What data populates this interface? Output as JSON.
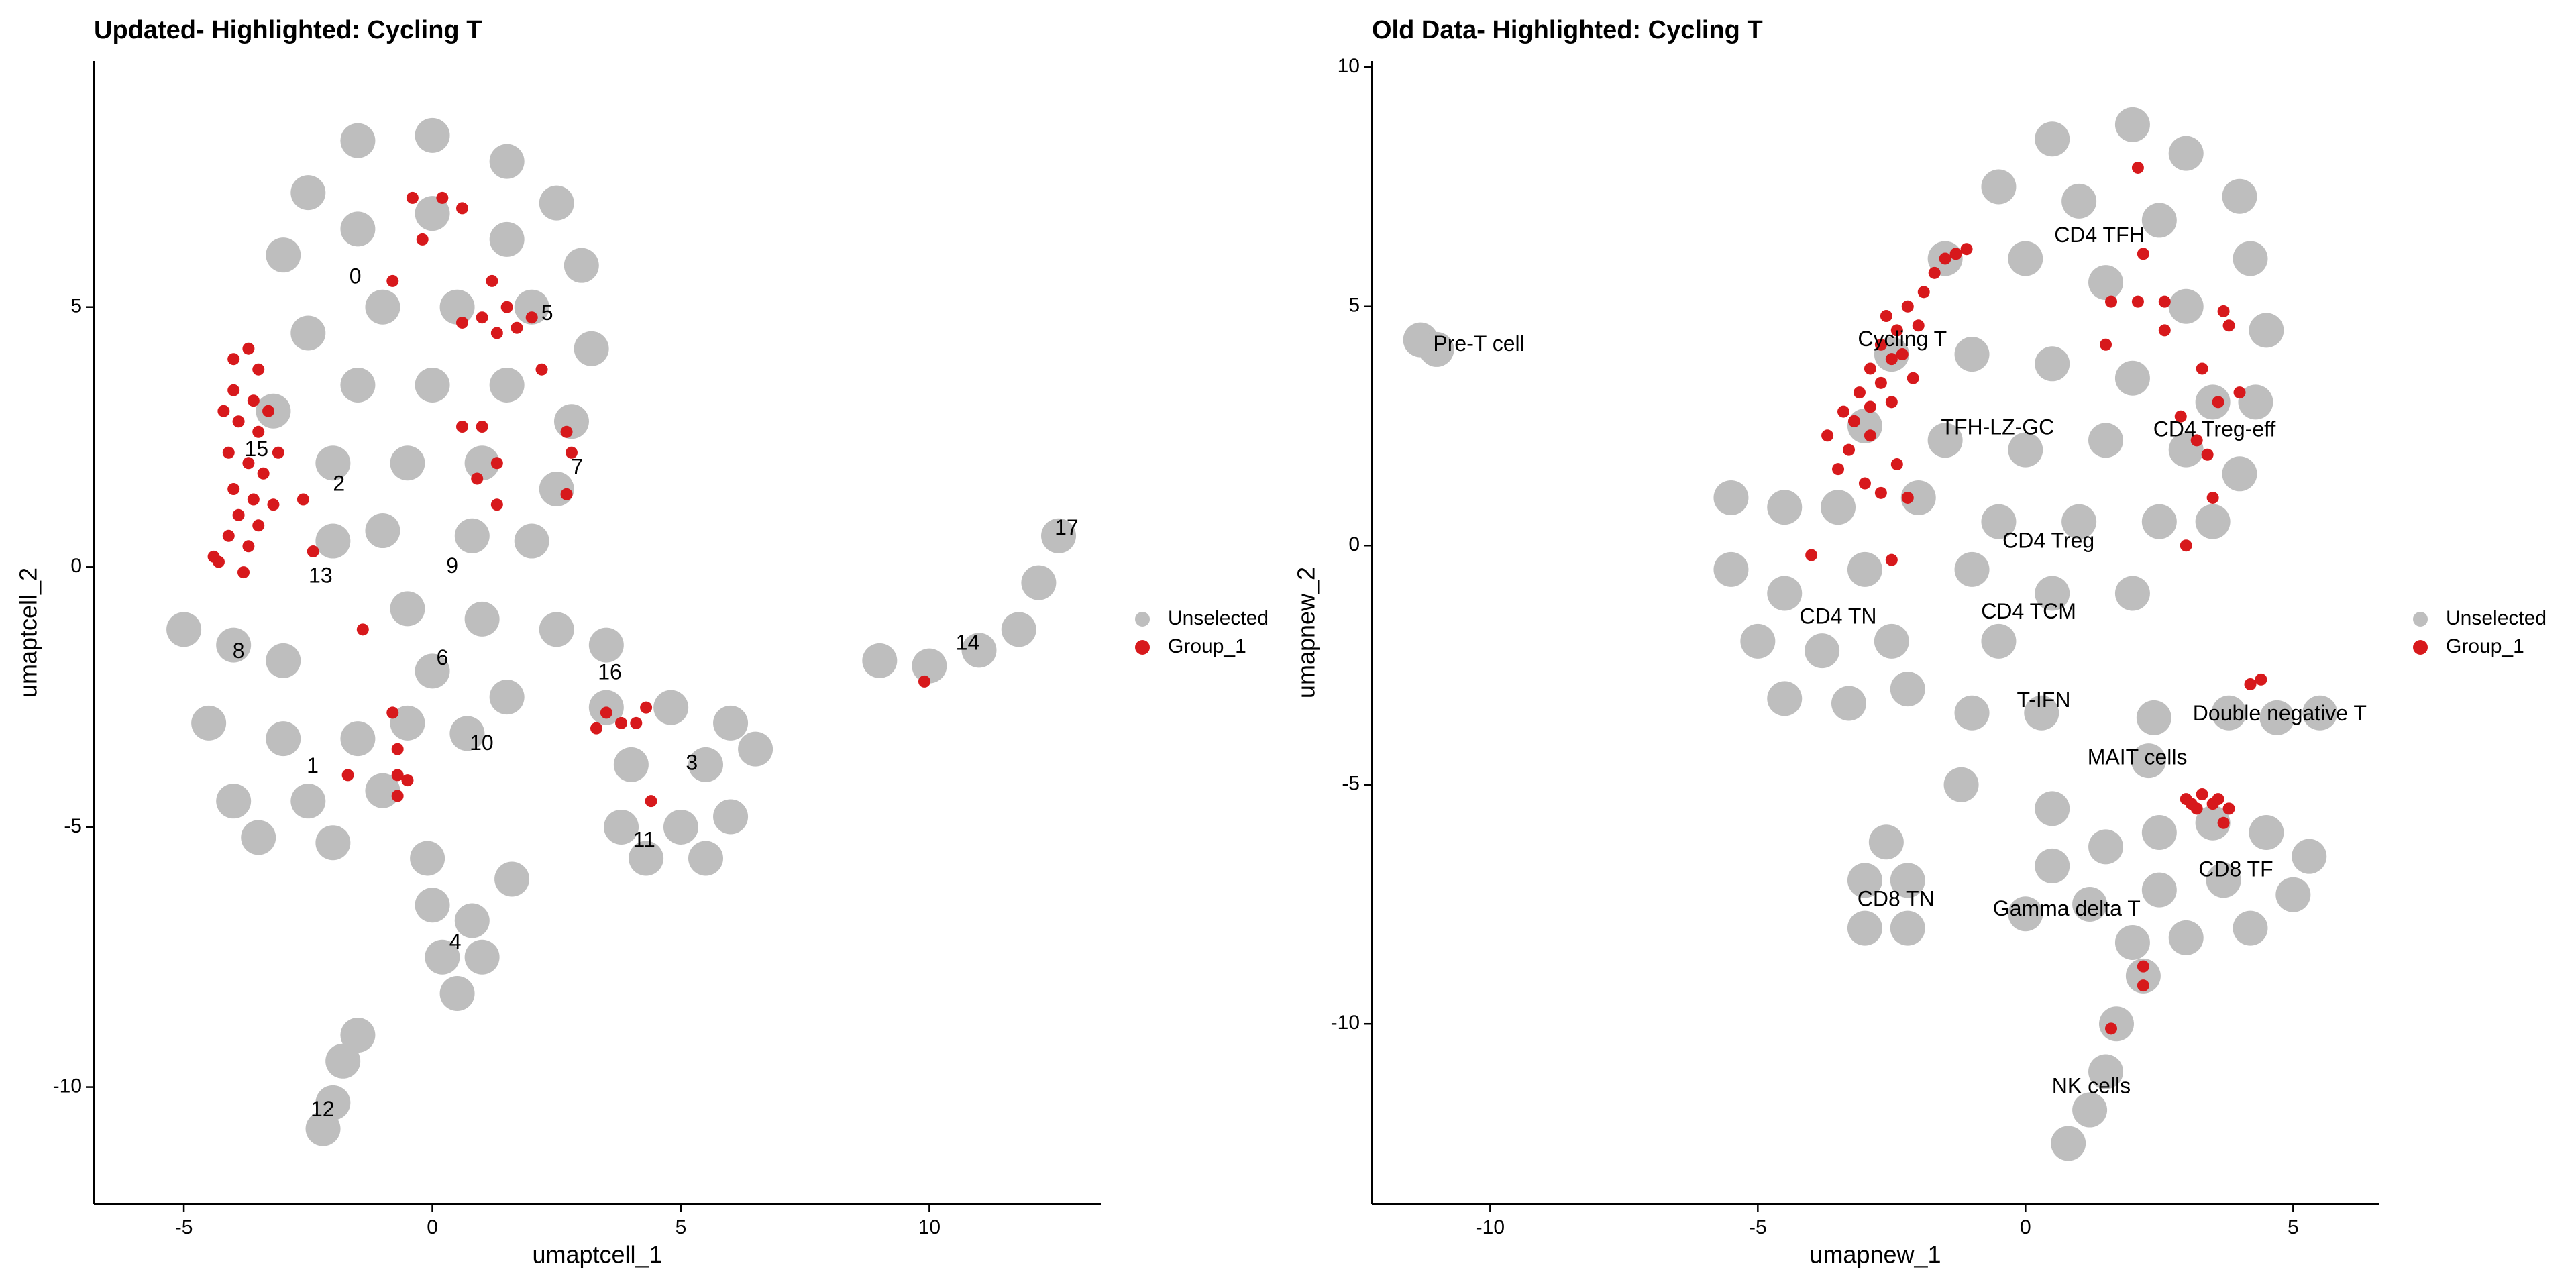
{
  "chart_data": [
    {
      "type": "scatter",
      "title": "Updated- Highlighted: Cycling T",
      "xlabel": "umaptcell_1",
      "ylabel": "umaptcell_2",
      "xlim": [
        -6.81,
        13.45
      ],
      "ylim": [
        -12.25,
        9.73
      ],
      "xticks": [
        -5,
        0,
        5,
        10
      ],
      "yticks": [
        -10,
        -5,
        0,
        5
      ],
      "legend": "right",
      "series": [
        {
          "name": "Unselected",
          "color": "#bebebe",
          "x": [
            -1.5,
            0,
            1.5,
            2.5,
            -2.5,
            -3,
            -1.5,
            0,
            1.5,
            3,
            -2.5,
            -1,
            0.5,
            2,
            3.2,
            -3.2,
            -1.5,
            0,
            1.5,
            2.8,
            -2,
            -0.5,
            1,
            2.5,
            -1,
            0.8,
            2,
            -2,
            -0.5,
            1,
            2.5,
            0,
            1.5,
            3.5,
            -5,
            -4,
            -3,
            -4.5,
            -3,
            -1.5,
            -4,
            -2.5,
            -1,
            -3.5,
            -2,
            -0.5,
            0.7,
            3.5,
            4.8,
            6,
            4,
            5.5,
            6.5,
            3.8,
            5,
            6,
            4.3,
            5.5,
            0,
            0.8,
            0.2,
            1,
            0.5,
            -0.1,
            1.6,
            -1.8,
            -2,
            -2.2,
            -1.5,
            9,
            10,
            11,
            11.8,
            12.2,
            12.6
          ],
          "y": [
            8.2,
            8.3,
            7.8,
            7,
            7.2,
            6,
            6.5,
            6.8,
            6.3,
            5.8,
            4.5,
            5,
            5,
            5,
            4.2,
            3,
            3.5,
            3.5,
            3.5,
            2.8,
            2,
            2,
            2,
            1.5,
            0.7,
            0.6,
            0.5,
            0.5,
            -0.8,
            -1,
            -1.2,
            -2,
            -2.5,
            -1.5,
            -1.2,
            -1.5,
            -1.8,
            -3,
            -3.3,
            -3.3,
            -4.5,
            -4.5,
            -4.3,
            -5.2,
            -5.3,
            -3,
            -3.2,
            -2.7,
            -2.7,
            -3,
            -3.8,
            -3.8,
            -3.5,
            -5,
            -5,
            -4.8,
            -5.6,
            -5.6,
            -6.5,
            -6.8,
            -7.5,
            -7.5,
            -8.2,
            -5.6,
            -6,
            -9.5,
            -10.3,
            -10.8,
            -9,
            -1.8,
            -1.9,
            -1.6,
            -1.2,
            -0.3,
            0.6
          ]
        },
        {
          "name": "Group_1",
          "color": "#d7191c",
          "x": [
            -4,
            -3.7,
            -3.5,
            -4,
            -3.6,
            -3.9,
            -3.5,
            -4.1,
            -3.7,
            -3.4,
            -4,
            -3.6,
            -3.9,
            -3.5,
            -4.1,
            -3.7,
            -4.3,
            -3.8,
            -3.3,
            -3.1,
            -4.2,
            -3.2,
            -0.4,
            0.2,
            0.6,
            -0.2,
            -0.8,
            1.2,
            1.5,
            1,
            1.3,
            2,
            1.7,
            0.6,
            2.2,
            0.6,
            1,
            2.7,
            2.8,
            1.3,
            0.9,
            2.7,
            1.3,
            -2.4,
            -1.4,
            3.5,
            3.8,
            3.3,
            4.1,
            4.3,
            -0.8,
            -0.7,
            -0.7,
            -0.5,
            -0.7,
            -1.7,
            4.4,
            9.9,
            -4.4,
            -2.6
          ],
          "y": [
            4,
            4.2,
            3.8,
            3.4,
            3.2,
            2.8,
            2.6,
            2.2,
            2,
            1.8,
            1.5,
            1.3,
            1,
            0.8,
            0.6,
            0.4,
            0.1,
            -0.1,
            3,
            2.2,
            3,
            1.2,
            7.1,
            7.1,
            6.9,
            6.3,
            5.5,
            5.5,
            5,
            4.8,
            4.5,
            4.8,
            4.6,
            4.7,
            3.8,
            2.7,
            2.7,
            2.6,
            2.2,
            2,
            1.7,
            1.4,
            1.2,
            0.3,
            -1.2,
            -2.8,
            -3,
            -3.1,
            -3,
            -2.7,
            -2.8,
            -3.5,
            -4,
            -4.1,
            -4.4,
            -4,
            -4.5,
            -2.2,
            0.2,
            1.3
          ]
        }
      ],
      "annotations": [
        {
          "text": "0",
          "x": -1.55,
          "y": 5.56
        },
        {
          "text": "5",
          "x": 2.31,
          "y": 4.86
        },
        {
          "text": "15",
          "x": -3.54,
          "y": 2.24
        },
        {
          "text": "2",
          "x": -1.88,
          "y": 1.58
        },
        {
          "text": "7",
          "x": 2.91,
          "y": 1.9
        },
        {
          "text": "13",
          "x": -2.25,
          "y": -0.19
        },
        {
          "text": "9",
          "x": 0.4,
          "y": 0
        },
        {
          "text": "17",
          "x": 12.76,
          "y": 0.73
        },
        {
          "text": "14",
          "x": 10.77,
          "y": -1.48
        },
        {
          "text": "8",
          "x": -3.9,
          "y": -1.64
        },
        {
          "text": "6",
          "x": 0.2,
          "y": -1.77
        },
        {
          "text": "16",
          "x": 3.57,
          "y": -2.05
        },
        {
          "text": "10",
          "x": 0.99,
          "y": -3.41
        },
        {
          "text": "1",
          "x": -2.41,
          "y": -3.85
        },
        {
          "text": "3",
          "x": 5.22,
          "y": -3.79
        },
        {
          "text": "11",
          "x": 4.26,
          "y": -5.27
        },
        {
          "text": "4",
          "x": 0.46,
          "y": -7.23
        },
        {
          "text": "12",
          "x": -2.21,
          "y": -10.45
        }
      ]
    },
    {
      "type": "scatter",
      "title": "Old Data- Highlighted: Cycling T",
      "xlabel": "umapnew_1",
      "ylabel": "umapnew_2",
      "xlim": [
        -12.21,
        6.6
      ],
      "ylim": [
        -13.77,
        10.13
      ],
      "xticks": [
        -10,
        -5,
        0,
        5
      ],
      "yticks": [
        -10,
        -5,
        0,
        5,
        10
      ],
      "legend": "right",
      "series": [
        {
          "name": "Unselected",
          "color": "#bebebe",
          "x": [
            0.5,
            2,
            3,
            4,
            -0.5,
            1,
            2.5,
            4.2,
            -1.5,
            0,
            1.5,
            3,
            4.5,
            -2.5,
            -1,
            0.5,
            2,
            3.5,
            4.3,
            -3,
            -1.5,
            0,
            1.5,
            3,
            4,
            -2,
            -0.5,
            1,
            2.5,
            3.5,
            -1,
            0.5,
            2,
            -0.5,
            -5.5,
            -4.5,
            -3.5,
            -5.5,
            -4.5,
            -3,
            -5,
            -3.8,
            -2.5,
            -4.5,
            -3.3,
            -2.2,
            -1,
            0.3,
            2.4,
            -1.2,
            0.5,
            2.3,
            3.8,
            4.7,
            5.5,
            -3,
            -2.2,
            -3,
            -2.2,
            -2.6,
            0.5,
            1.5,
            2.5,
            3.5,
            4.5,
            5.3,
            0,
            1.2,
            2.5,
            3.7,
            5,
            2,
            3,
            4.2,
            2.2,
            1.7,
            1.5,
            1.2,
            0.8,
            -11.3,
            -11
          ],
          "y": [
            8.5,
            8.8,
            8.2,
            7.3,
            7.5,
            7.2,
            6.8,
            6,
            6,
            6,
            5.5,
            5,
            4.5,
            4,
            4,
            3.8,
            3.5,
            3,
            3,
            2.5,
            2.2,
            2,
            2.2,
            2,
            1.5,
            1,
            0.5,
            0.5,
            0.5,
            0.5,
            -0.5,
            -1,
            -1,
            -2,
            1,
            0.8,
            0.8,
            -0.5,
            -1,
            -0.5,
            -2,
            -2.2,
            -2,
            -3.2,
            -3.3,
            -3,
            -3.5,
            -3.5,
            -3.6,
            -5,
            -5.5,
            -4.5,
            -3.5,
            -3.6,
            -3.5,
            -7,
            -7,
            -8,
            -8,
            -6.2,
            -6.7,
            -6.3,
            -6,
            -5.8,
            -6,
            -6.5,
            -7.7,
            -7.5,
            -7.2,
            -7,
            -7.3,
            -8.3,
            -8.2,
            -8,
            -9,
            -10,
            -11,
            -11.8,
            -12.5,
            4.3,
            4.1
          ]
        },
        {
          "name": "Group_1",
          "color": "#d7191c",
          "x": [
            -3.7,
            -3.3,
            -3.5,
            -3,
            -2.7,
            -3.2,
            -2.9,
            -3.1,
            -2.7,
            -2.9,
            -2.5,
            -2.7,
            -2.4,
            -2.6,
            -2.2,
            -2.3,
            -2,
            -1.9,
            -1.7,
            -1.5,
            -2.1,
            -2.5,
            -3.4,
            -2.9,
            -2.4,
            -2.2,
            -1.3,
            -1.1,
            2.1,
            2.2,
            1.6,
            2.1,
            2.6,
            1.5,
            2.6,
            3.7,
            3.8,
            3.3,
            4,
            3.6,
            3.2,
            2.9,
            3.4,
            3.5,
            3,
            -4,
            -2.5,
            4.2,
            4.4,
            3,
            3.3,
            3.5,
            3.2,
            3.6,
            3.8,
            3.7,
            3.1,
            2.2,
            2.2,
            1.6
          ],
          "y": [
            2.3,
            2,
            1.6,
            1.3,
            1.1,
            2.6,
            2.9,
            3.2,
            3.4,
            3.7,
            3.9,
            4.2,
            4.5,
            4.8,
            5,
            4,
            4.6,
            5.3,
            5.7,
            6,
            3.5,
            3,
            2.8,
            2.3,
            1.7,
            1,
            6.1,
            6.2,
            7.9,
            6.1,
            5.1,
            5.1,
            5.1,
            4.2,
            4.5,
            4.9,
            4.6,
            3.7,
            3.2,
            3,
            2.2,
            2.7,
            1.9,
            1,
            0,
            -0.2,
            -0.3,
            -2.9,
            -2.8,
            -5.3,
            -5.2,
            -5.4,
            -5.5,
            -5.3,
            -5.5,
            -5.8,
            -5.4,
            -8.8,
            -9.2,
            -10.1
          ]
        }
      ],
      "annotations": [
        {
          "text": "Pre-T cell",
          "x": -10.21,
          "y": 4.19
        },
        {
          "text": "CD4 TFH",
          "x": 1.38,
          "y": 6.46
        },
        {
          "text": "Cycling T",
          "x": -2.3,
          "y": 4.29
        },
        {
          "text": "TFH-LZ-GC",
          "x": -0.52,
          "y": 2.44
        },
        {
          "text": "CD4 Treg-eff",
          "x": 3.53,
          "y": 2.4
        },
        {
          "text": "CD4 Treg",
          "x": 0.43,
          "y": 0.07
        },
        {
          "text": "CD4 TN",
          "x": -3.5,
          "y": -1.51
        },
        {
          "text": "CD4 TCM",
          "x": 0.06,
          "y": -1.41
        },
        {
          "text": "T-IFN",
          "x": 0.34,
          "y": -3.26
        },
        {
          "text": "Double negative T",
          "x": 4.75,
          "y": -3.54
        },
        {
          "text": "MAIT cells",
          "x": 2.09,
          "y": -4.46
        },
        {
          "text": "CD8 TF",
          "x": 3.93,
          "y": -6.8
        },
        {
          "text": "CD8 TN",
          "x": -2.42,
          "y": -7.42
        },
        {
          "text": "Gamma delta T",
          "x": 0.77,
          "y": -7.62
        },
        {
          "text": "NK cells",
          "x": 1.23,
          "y": -11.33
        }
      ]
    }
  ]
}
